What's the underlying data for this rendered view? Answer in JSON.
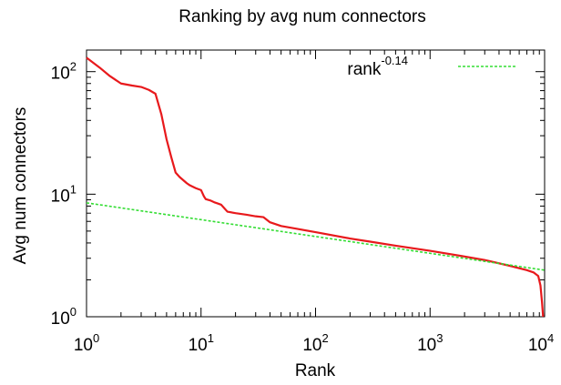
{
  "chart_data": {
    "type": "line",
    "title": "Ranking by avg num connectors",
    "xlabel": "Rank",
    "ylabel": "Avg num connectors",
    "xscale": "log",
    "yscale": "log",
    "xlim": [
      1,
      10000
    ],
    "ylim": [
      1,
      150
    ],
    "grid": false,
    "legend_position": "top-right",
    "x_ticks": [
      {
        "base": "10",
        "exp": "0",
        "value": 1
      },
      {
        "base": "10",
        "exp": "1",
        "value": 10
      },
      {
        "base": "10",
        "exp": "2",
        "value": 100
      },
      {
        "base": "10",
        "exp": "3",
        "value": 1000
      },
      {
        "base": "10",
        "exp": "4",
        "value": 10000
      }
    ],
    "y_ticks": [
      {
        "base": "10",
        "exp": "0",
        "value": 1
      },
      {
        "base": "10",
        "exp": "1",
        "value": 10
      },
      {
        "base": "10",
        "exp": "2",
        "value": 100
      }
    ],
    "series": [
      {
        "color": "#e8191c",
        "style": "solid",
        "points": [
          [
            1,
            130
          ],
          [
            1.3,
            108
          ],
          [
            1.6,
            92
          ],
          [
            2,
            80
          ],
          [
            2.5,
            77
          ],
          [
            3,
            75
          ],
          [
            3.5,
            71
          ],
          [
            4,
            66
          ],
          [
            4.5,
            45
          ],
          [
            5,
            28
          ],
          [
            5.5,
            20
          ],
          [
            6,
            15
          ],
          [
            6.5,
            13.8
          ],
          [
            7,
            13
          ],
          [
            7.5,
            12.3
          ],
          [
            8,
            11.8
          ],
          [
            9,
            11.2
          ],
          [
            10,
            10.8
          ],
          [
            10.6,
            9.6
          ],
          [
            11,
            9.1
          ],
          [
            12,
            8.9
          ],
          [
            13,
            8.6
          ],
          [
            14,
            8.4
          ],
          [
            15,
            8.2
          ],
          [
            17,
            7.2
          ],
          [
            20,
            7.0
          ],
          [
            25,
            6.8
          ],
          [
            30,
            6.6
          ],
          [
            35,
            6.5
          ],
          [
            40,
            5.9
          ],
          [
            50,
            5.5
          ],
          [
            70,
            5.2
          ],
          [
            100,
            4.9
          ],
          [
            200,
            4.35
          ],
          [
            300,
            4.1
          ],
          [
            500,
            3.8
          ],
          [
            1000,
            3.45
          ],
          [
            2000,
            3.1
          ],
          [
            3000,
            2.9
          ],
          [
            5000,
            2.6
          ],
          [
            7000,
            2.4
          ],
          [
            8000,
            2.3
          ],
          [
            8800,
            2.15
          ],
          [
            9200,
            1.8
          ],
          [
            9500,
            1.3
          ],
          [
            9700,
            1
          ]
        ]
      },
      {
        "color": "#33dd33",
        "style": "dashed",
        "points": [
          [
            1,
            8.5
          ],
          [
            10000,
            2.4
          ]
        ]
      }
    ],
    "legend": {
      "base": "rank",
      "exp": "-0.14",
      "color": "#33dd33"
    }
  }
}
